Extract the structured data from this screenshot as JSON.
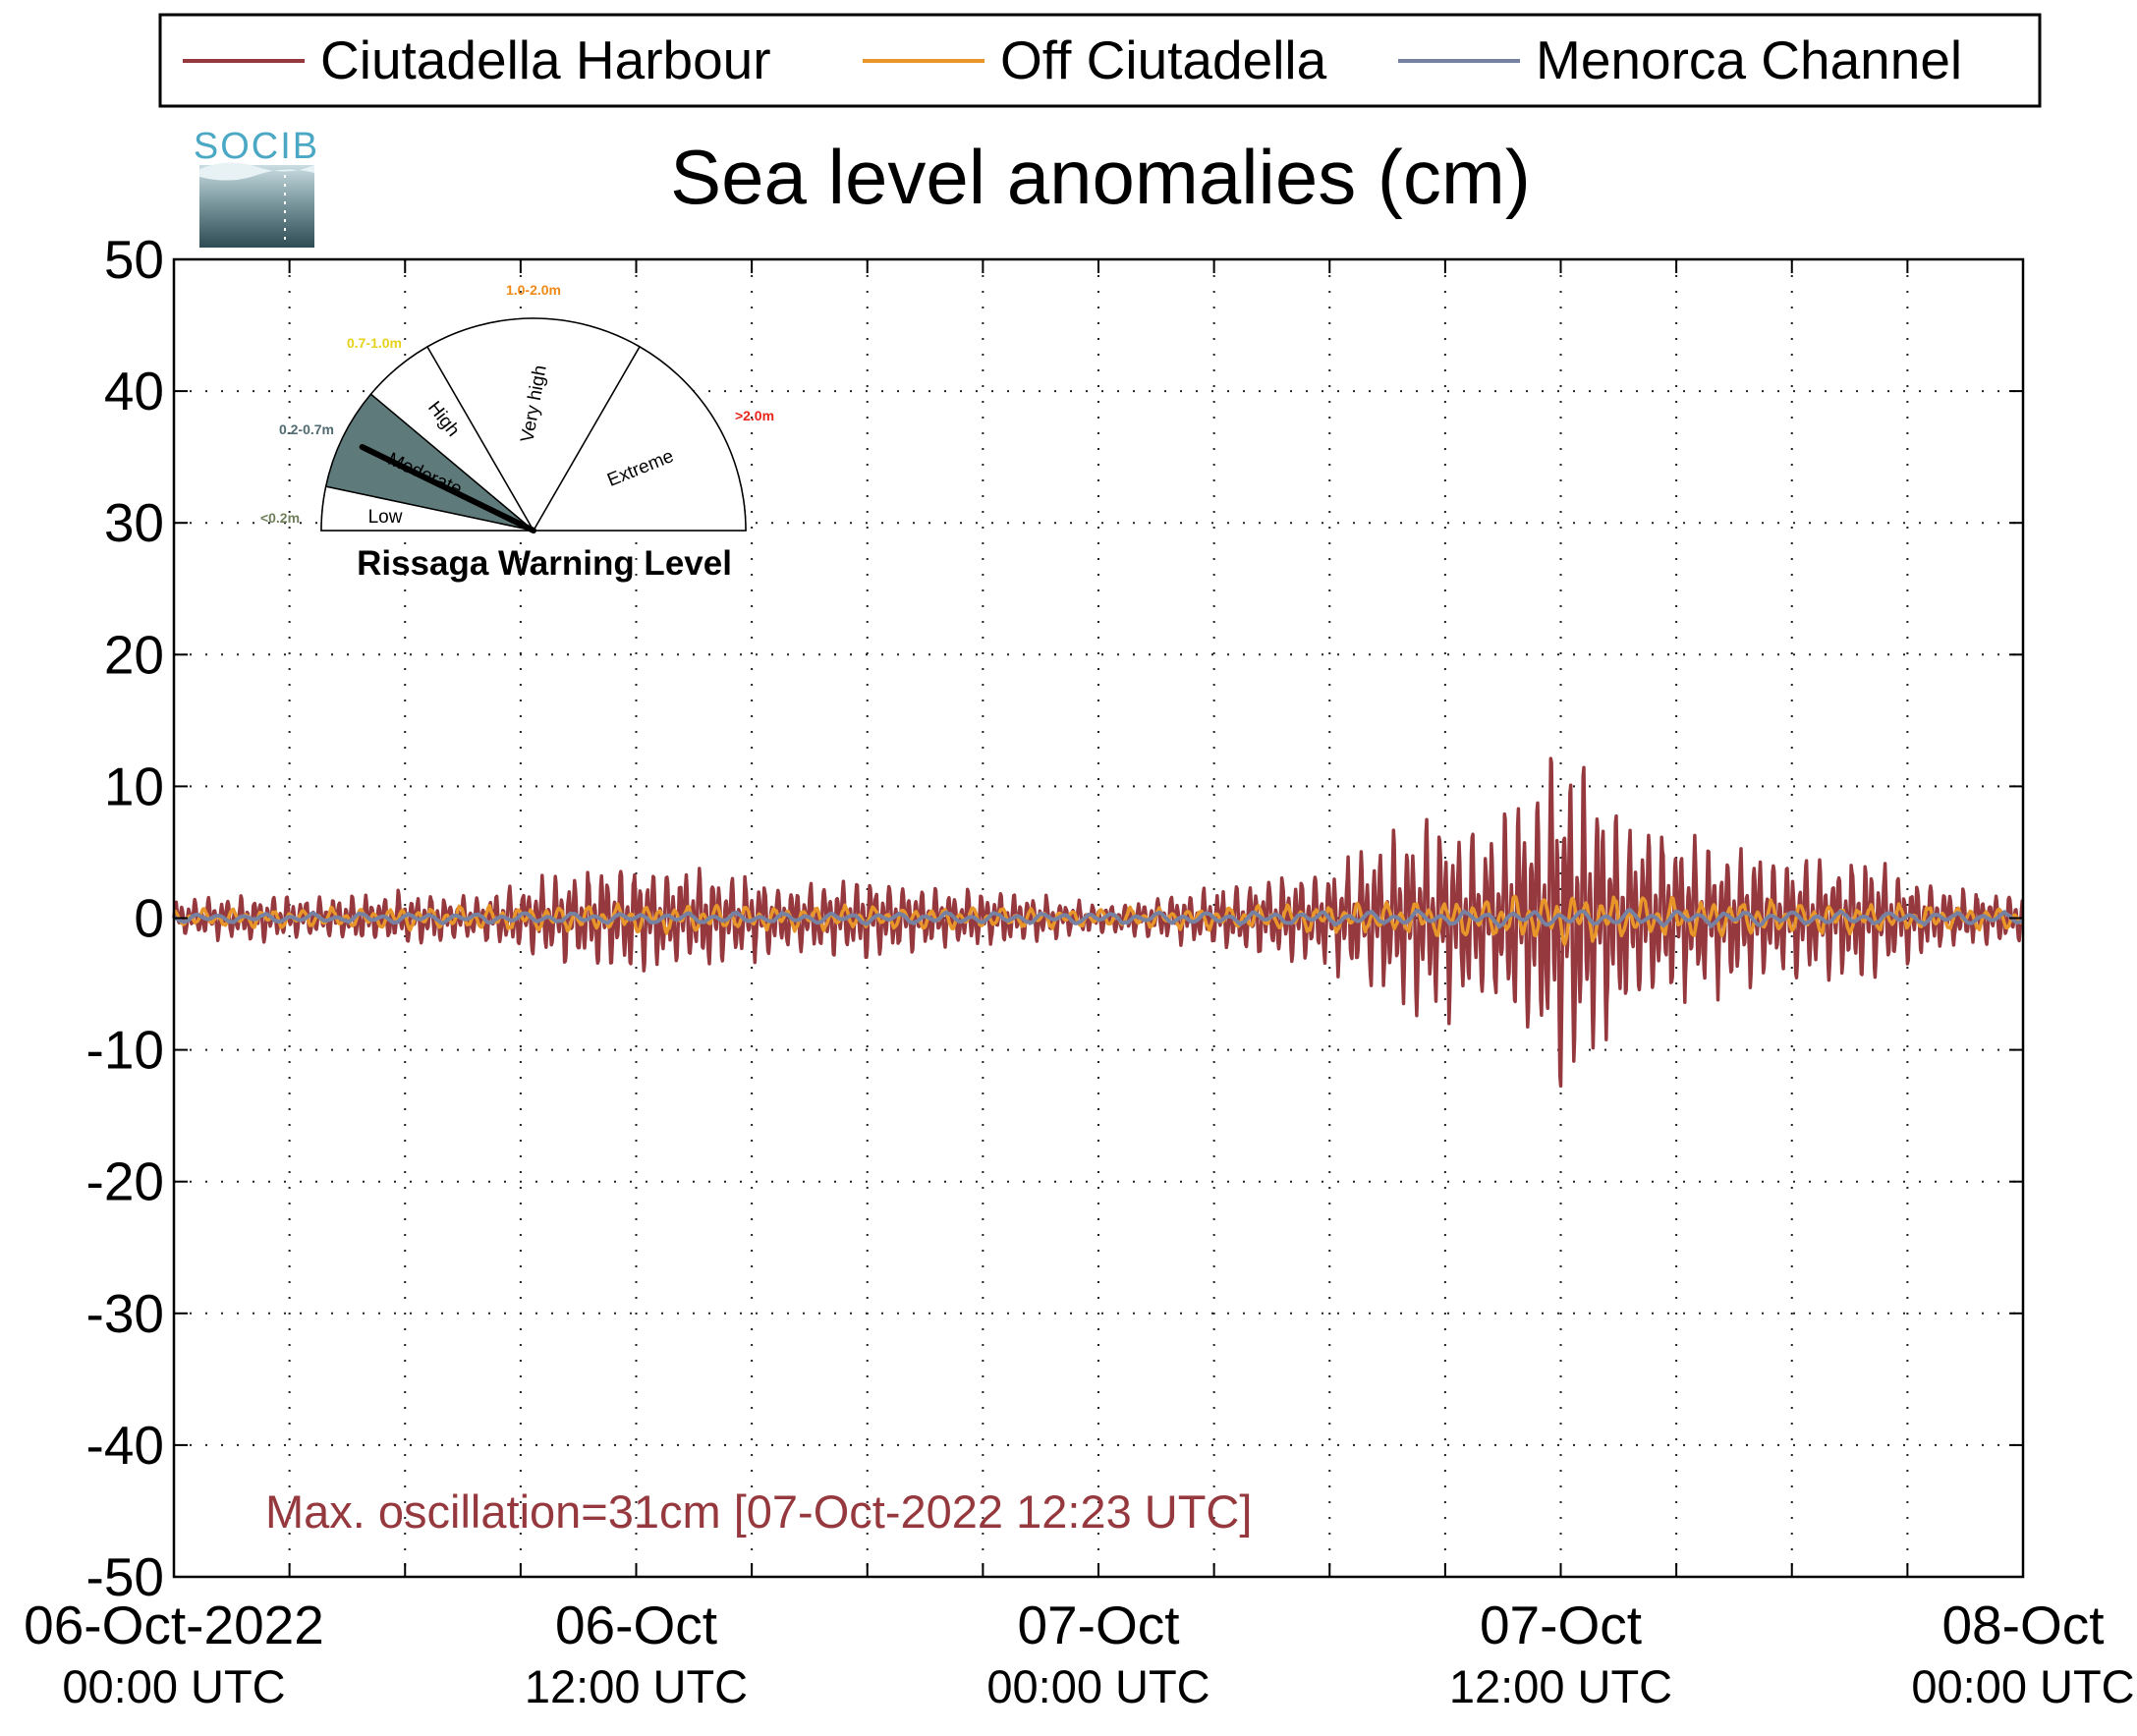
{
  "chart_data": {
    "type": "line",
    "title": "Sea level anomalies (cm)",
    "logo_text": "SOCIB",
    "ylim": [
      -50,
      50
    ],
    "y_ticks": [
      50,
      40,
      30,
      20,
      10,
      0,
      -10,
      -20,
      -30,
      -40,
      -50
    ],
    "y_tick_labels": [
      "50",
      "40",
      "30",
      "20",
      "10",
      "0",
      "-10",
      "-20",
      "-30",
      "-40",
      "-50"
    ],
    "x_range_hours": [
      0,
      48
    ],
    "x_tick_labels": [
      {
        "hour": 0,
        "line1": "06-Oct-2022",
        "line2": "00:00 UTC"
      },
      {
        "hour": 12,
        "line1": "06-Oct",
        "line2": "12:00 UTC"
      },
      {
        "hour": 24,
        "line1": "07-Oct",
        "line2": "00:00 UTC"
      },
      {
        "hour": 36,
        "line1": "07-Oct",
        "line2": "12:00 UTC"
      },
      {
        "hour": 48,
        "line1": "08-Oct",
        "line2": "00:00 UTC"
      }
    ],
    "x_gridlines_hours": [
      3,
      6,
      9,
      12,
      15,
      18,
      21,
      24,
      27,
      30,
      33,
      36,
      39,
      42,
      45
    ],
    "grid": true,
    "legend_position": "top",
    "series": [
      {
        "name": "Ciutadella Harbour",
        "color": "#96393f",
        "envelope_hours": [
          0,
          2,
          4,
          6,
          8,
          10,
          12,
          14,
          16,
          18,
          20,
          22,
          24,
          26,
          28,
          30,
          32,
          33,
          34,
          35,
          36,
          37,
          38,
          40,
          42,
          44,
          46,
          48
        ],
        "envelope_cm": [
          1.5,
          2.0,
          1.8,
          2.2,
          2.0,
          3.8,
          4.5,
          4.3,
          3.0,
          3.5,
          2.5,
          2.2,
          1.2,
          2.0,
          3.0,
          4.5,
          7.5,
          8.5,
          7.0,
          10.5,
          15.0,
          11.0,
          8.0,
          6.5,
          5.0,
          5.2,
          2.5,
          2.0
        ]
      },
      {
        "name": "Off Ciutadella",
        "color": "#e8962a",
        "envelope_hours": [
          0,
          12,
          24,
          30,
          34,
          36,
          38,
          42,
          48
        ],
        "envelope_cm": [
          0.7,
          1.2,
          0.8,
          1.2,
          1.8,
          2.2,
          1.8,
          1.4,
          0.9
        ]
      },
      {
        "name": "Menorca Channel",
        "color": "#7781a1",
        "envelope_hours": [
          0,
          24,
          36,
          48
        ],
        "envelope_cm": [
          0.4,
          0.5,
          0.7,
          0.5
        ]
      }
    ],
    "annotation": {
      "text": "Max. oscillation=31cm [07-Oct-2022 12:23 UTC]",
      "color": "#96393f"
    },
    "gauge": {
      "title": "Rissaga Warning Level",
      "active_level": "Moderate",
      "needle_level": "Moderate",
      "levels": [
        {
          "label": "Low",
          "range": "<0.2m",
          "range_color": "#6e7f5a",
          "active": false
        },
        {
          "label": "Moderate",
          "range": "0.2-0.7m",
          "range_color": "#4f6a70",
          "active": true,
          "fill": "#5f7a7a"
        },
        {
          "label": "High",
          "range": "0.7-1.0m",
          "range_color": "#e6d21b",
          "active": false
        },
        {
          "label": "Very high",
          "range": "1.0-2.0m",
          "range_color": "#ef8a17",
          "active": false
        },
        {
          "label": "Extreme",
          "range": ">2.0m",
          "range_color": "#e8261c",
          "active": false
        }
      ]
    }
  }
}
